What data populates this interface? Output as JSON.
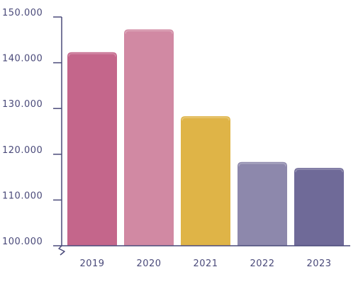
{
  "chart_data": {
    "type": "bar",
    "categories": [
      "2019",
      "2020",
      "2021",
      "2022",
      "2023"
    ],
    "values": [
      142300,
      147300,
      128300,
      118300,
      117000
    ],
    "ylim": [
      100000,
      150000
    ],
    "yticks": [
      100000,
      110000,
      120000,
      130000,
      140000,
      150000
    ],
    "ytick_labels": [
      "100.000",
      "110.000",
      "120.000",
      "130.000",
      "140.000",
      "150.000"
    ],
    "axis_break": true,
    "grid": false,
    "title": "",
    "xlabel": "",
    "ylabel": "",
    "bar_colors": [
      "#c4668b",
      "#d189a3",
      "#dfb447",
      "#8d88ac",
      "#6f6a98"
    ],
    "axis_color": "#4a4a7a"
  }
}
